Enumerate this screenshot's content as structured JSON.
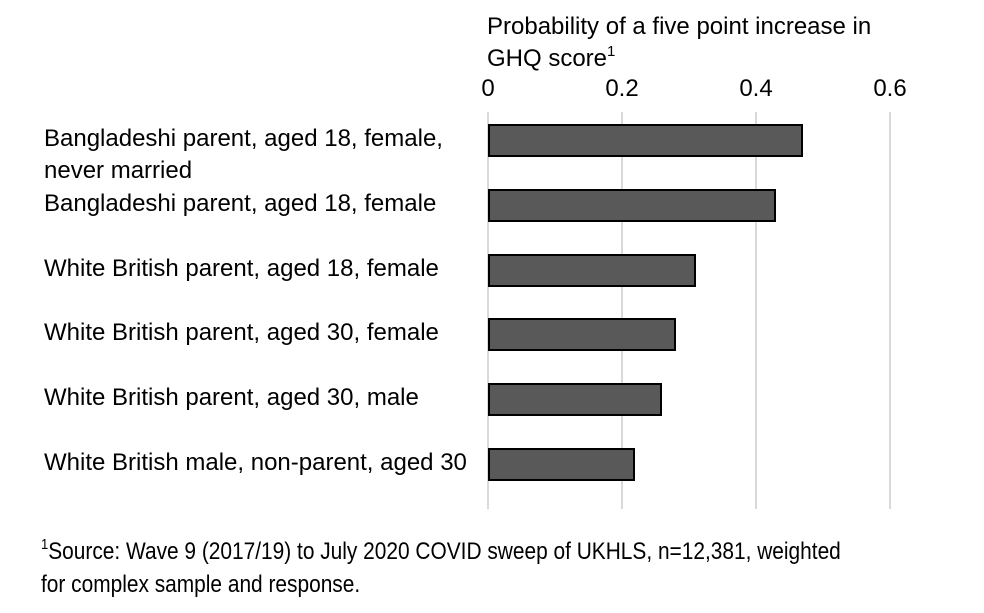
{
  "title": {
    "line1": "Probability of a five point increase in",
    "line2": "GHQ score",
    "superscript": "1"
  },
  "x_axis": {
    "tick_labels": [
      "0",
      "0.2",
      "0.4",
      "0.6"
    ]
  },
  "footnote": {
    "superscript": "1",
    "line1": "Source: Wave 9 (2017/19) to July 2020 COVID sweep of UKHLS, n=12,381, weighted",
    "line2": "for complex sample and response."
  },
  "chart_data": {
    "type": "bar",
    "orientation": "horizontal",
    "title": "Probability of a five point increase in GHQ score",
    "categories": [
      "Bangladeshi parent, aged 18, female,\nnever married",
      "Bangladeshi parent, aged 18, female",
      "White British parent, aged 18, female",
      "White British parent, aged 30, female",
      "White British parent, aged 30, male",
      "White British male, non-parent, aged 30"
    ],
    "values": [
      0.47,
      0.43,
      0.31,
      0.28,
      0.26,
      0.22
    ],
    "xlim": [
      0,
      0.6
    ],
    "xticks": [
      0,
      0.2,
      0.4,
      0.6
    ],
    "xlabel": "",
    "ylabel": "",
    "grid": true,
    "legend": false,
    "colors": {
      "bar_fill": "#595959",
      "bar_border": "#000000",
      "gridline": "#d9d9d9",
      "text": "#000000"
    }
  }
}
